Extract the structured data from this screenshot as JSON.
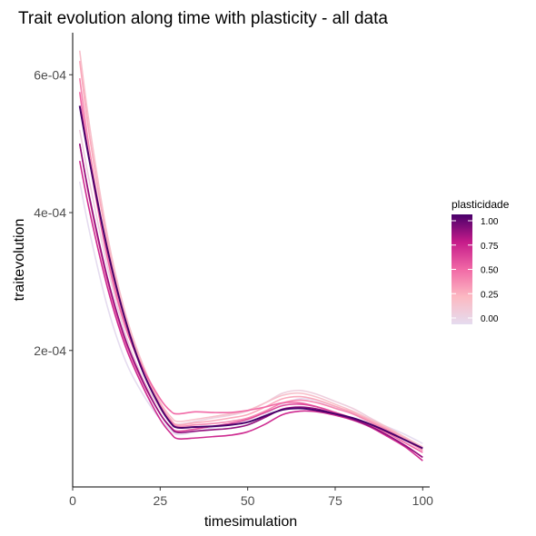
{
  "chart_data": {
    "type": "line",
    "title": "Trait evolution along time with plasticity - all data",
    "xlabel": "timesimulation",
    "ylabel": "traitevolution",
    "xlim": [
      0,
      102
    ],
    "ylim": [
      2e-06,
      0.000661
    ],
    "x_ticks": [
      0,
      25,
      50,
      75,
      100
    ],
    "x_tick_labels": [
      "0",
      "25",
      "50",
      "75",
      "100"
    ],
    "y_ticks": [
      0.0002,
      0.0004,
      0.0006
    ],
    "y_tick_labels": [
      "2e-04",
      "4e-04",
      "6e-04"
    ],
    "grid": false,
    "legend": {
      "title": "plasticidade",
      "position": "right",
      "type": "colorbar",
      "range": [
        0,
        1
      ],
      "breaks": [
        0,
        0.25,
        0.5,
        0.75,
        1
      ],
      "labels": [
        "0.00",
        "0.25",
        "0.50",
        "0.75",
        "1.00"
      ],
      "colors": [
        "#e5dcef",
        "#fcb9c2",
        "#f169a6",
        "#c51b8a",
        "#49006a"
      ]
    },
    "x": [
      2,
      5,
      10,
      15,
      20,
      25,
      28,
      30,
      35,
      40,
      45,
      50,
      55,
      60,
      65,
      70,
      75,
      80,
      85,
      90,
      95,
      100
    ],
    "series": [
      {
        "plasticity": 0.0,
        "values": [
          0.000445,
          0.000368,
          0.000262,
          0.000186,
          0.000137,
          0.0001,
          8.5e-05,
          7.8e-05,
          8.2e-05,
          8.8e-05,
          9.2e-05,
          9.7e-05,
          0.000107,
          0.000122,
          0.00013,
          0.000127,
          0.000118,
          0.00011,
          9.9e-05,
          8.9e-05,
          7.8e-05,
          6.5e-05
        ]
      },
      {
        "plasticity": 0.1,
        "values": [
          0.00052,
          0.00044,
          0.00032,
          0.000225,
          0.00016,
          0.000115,
          9.8e-05,
          9.3e-05,
          9.7e-05,
          0.000102,
          0.000106,
          0.000112,
          0.000124,
          0.000138,
          0.000142,
          0.000136,
          0.000126,
          0.000116,
          0.000102,
          8.8e-05,
          7.2e-05,
          5.8e-05
        ]
      },
      {
        "plasticity": 0.2,
        "values": [
          0.000635,
          0.00052,
          0.000365,
          0.000255,
          0.00018,
          0.000125,
          0.000104,
          9.7e-05,
          0.0001,
          0.000104,
          0.000108,
          0.000113,
          0.000124,
          0.000135,
          0.000138,
          0.000132,
          0.000122,
          0.000112,
          0.0001,
          8.8e-05,
          7.4e-05,
          6e-05
        ]
      },
      {
        "plasticity": 0.3,
        "values": [
          0.00062,
          0.000505,
          0.000355,
          0.000248,
          0.000176,
          0.000122,
          0.0001,
          9.2e-05,
          9.5e-05,
          9.8e-05,
          0.000102,
          0.000107,
          0.000118,
          0.00013,
          0.000133,
          0.000128,
          0.000119,
          0.00011,
          9.8e-05,
          8.6e-05,
          7.2e-05,
          5.8e-05
        ]
      },
      {
        "plasticity": 0.4,
        "values": [
          0.000595,
          0.000485,
          0.00034,
          0.000238,
          0.00017,
          0.00012,
          9.8e-05,
          9e-05,
          9.2e-05,
          9.4e-05,
          9.7e-05,
          0.000102,
          0.000112,
          0.000124,
          0.000128,
          0.000124,
          0.000116,
          0.000108,
          9.6e-05,
          8.4e-05,
          7e-05,
          5.5e-05
        ]
      },
      {
        "plasticity": 0.5,
        "values": [
          0.000575,
          0.00047,
          0.000332,
          0.000235,
          0.000175,
          0.00013,
          0.000112,
          0.000108,
          0.000111,
          0.00011,
          0.00011,
          0.000113,
          0.000118,
          0.000124,
          0.000124,
          0.000118,
          0.00011,
          0.000102,
          9.2e-05,
          8e-05,
          6.6e-05,
          5.2e-05
        ]
      },
      {
        "plasticity": 0.6,
        "values": [
          0.0005,
          0.000415,
          0.0003,
          0.000214,
          0.000154,
          0.000108,
          8.9e-05,
          8.3e-05,
          8.6e-05,
          9e-05,
          9.4e-05,
          0.0001,
          0.00011,
          0.00012,
          0.000122,
          0.000118,
          0.00011,
          0.000101,
          9e-05,
          7.7e-05,
          6.2e-05,
          4.5e-05
        ]
      },
      {
        "plasticity": 0.7,
        "values": [
          0.000475,
          0.000398,
          0.00029,
          0.000207,
          0.000148,
          0.0001,
          8e-05,
          7.2e-05,
          7.3e-05,
          7.5e-05,
          7.7e-05,
          8.2e-05,
          9.3e-05,
          0.000107,
          0.000112,
          0.000111,
          0.000106,
          9.9e-05,
          8.9e-05,
          7.5e-05,
          6e-05,
          4e-05
        ]
      },
      {
        "plasticity": 0.85,
        "values": [
          0.0005,
          0.000418,
          0.000304,
          0.000217,
          0.000156,
          0.000108,
          8.8e-05,
          8.1e-05,
          8.3e-05,
          8.5e-05,
          8.7e-05,
          9.2e-05,
          0.000103,
          0.000115,
          0.000118,
          0.000115,
          0.000108,
          0.0001,
          9e-05,
          7.7e-05,
          6.2e-05,
          4.5e-05
        ]
      },
      {
        "plasticity": 1.0,
        "values": [
          0.000555,
          0.00047,
          0.000345,
          0.000245,
          0.00017,
          0.000118,
          9.5e-05,
          8.8e-05,
          8.9e-05,
          9e-05,
          9.2e-05,
          9.6e-05,
          0.000105,
          0.000114,
          0.000116,
          0.000113,
          0.000108,
          0.000102,
          9.3e-05,
          8.2e-05,
          7e-05,
          5.8e-05
        ]
      }
    ]
  }
}
